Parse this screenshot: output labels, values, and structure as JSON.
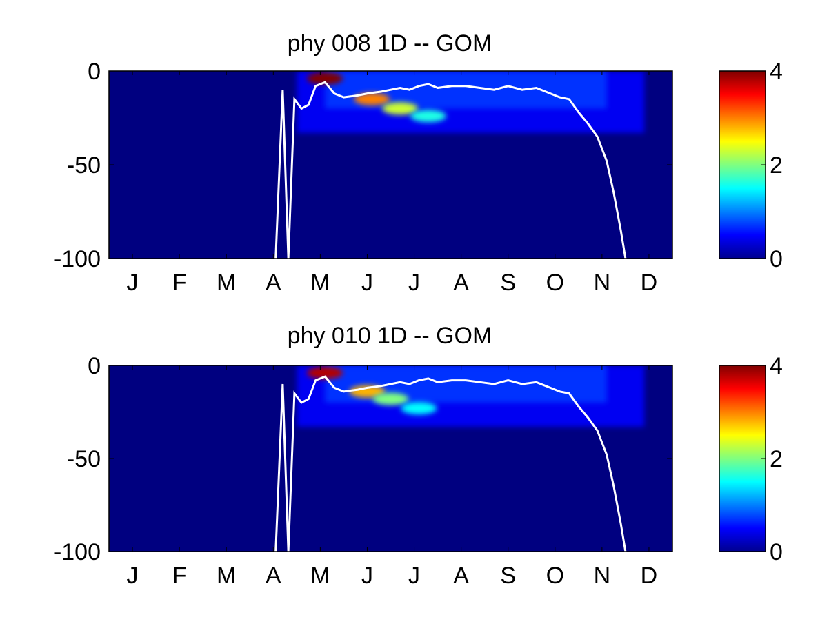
{
  "colormap": "jet",
  "colors": {
    "background": "#ffffff",
    "mld_line": "#ffffff",
    "axis": "#000000"
  },
  "chart_data": [
    {
      "type": "heatmap",
      "title": "phy  008 1D   -- GOM",
      "xlabel": "",
      "ylabel": "",
      "x_tick_labels": [
        "J",
        "F",
        "M",
        "A",
        "M",
        "J",
        "J",
        "A",
        "S",
        "O",
        "N",
        "D"
      ],
      "y_ticks": [
        0,
        -50,
        -100
      ],
      "y_tick_labels": [
        "0",
        "-50",
        "-100"
      ],
      "ylim": [
        -100,
        0
      ],
      "color_range": [
        0,
        4
      ],
      "colorbar_ticks": [
        0,
        2,
        4
      ],
      "colorbar_tick_labels": [
        "0",
        "2",
        "4"
      ],
      "bloom_features": [
        {
          "month": 4.6,
          "depth": -4,
          "value": 4.0
        },
        {
          "month": 5.6,
          "depth": -15,
          "value": 3.0
        },
        {
          "month": 6.2,
          "depth": -20,
          "value": 2.3
        },
        {
          "month": 6.8,
          "depth": -24,
          "value": 1.6
        }
      ],
      "mixed_layer_depth": {
        "month": [
          3.55,
          3.7,
          3.82,
          3.95,
          4.1,
          4.25,
          4.4,
          4.6,
          4.8,
          5.0,
          5.3,
          5.5,
          5.8,
          6.0,
          6.2,
          6.4,
          6.6,
          6.8,
          7.0,
          7.3,
          7.6,
          7.9,
          8.2,
          8.5,
          8.8,
          9.1,
          9.4,
          9.6,
          9.8,
          10.0,
          10.2,
          10.4,
          10.6,
          10.75,
          10.9,
          11.0
        ],
        "depth": [
          -100,
          -10,
          -100,
          -15,
          -20,
          -18,
          -8,
          -6,
          -12,
          -14,
          -13,
          -12,
          -11,
          -10,
          -9,
          -10,
          -8,
          -7,
          -9,
          -8,
          -8,
          -9,
          -10,
          -8,
          -10,
          -9,
          -12,
          -14,
          -15,
          -22,
          -28,
          -35,
          -48,
          -65,
          -85,
          -100
        ]
      }
    },
    {
      "type": "heatmap",
      "title": "phy  010 1D   -- GOM",
      "xlabel": "",
      "ylabel": "",
      "x_tick_labels": [
        "J",
        "F",
        "M",
        "A",
        "M",
        "J",
        "J",
        "A",
        "S",
        "O",
        "N",
        "D"
      ],
      "y_ticks": [
        0,
        -50,
        -100
      ],
      "y_tick_labels": [
        "0",
        "-50",
        "-100"
      ],
      "ylim": [
        -100,
        0
      ],
      "color_range": [
        0,
        4
      ],
      "colorbar_ticks": [
        0,
        2,
        4
      ],
      "colorbar_tick_labels": [
        "0",
        "2",
        "4"
      ],
      "bloom_features": [
        {
          "month": 4.6,
          "depth": -4,
          "value": 3.8
        },
        {
          "month": 5.5,
          "depth": -14,
          "value": 2.8
        },
        {
          "month": 6.0,
          "depth": -18,
          "value": 2.0
        },
        {
          "month": 6.6,
          "depth": -23,
          "value": 1.5
        }
      ],
      "mixed_layer_depth": {
        "month": [
          3.55,
          3.7,
          3.82,
          3.95,
          4.1,
          4.25,
          4.4,
          4.6,
          4.8,
          5.0,
          5.3,
          5.5,
          5.8,
          6.0,
          6.2,
          6.4,
          6.6,
          6.8,
          7.0,
          7.3,
          7.6,
          7.9,
          8.2,
          8.5,
          8.8,
          9.1,
          9.4,
          9.6,
          9.8,
          10.0,
          10.2,
          10.4,
          10.6,
          10.75,
          10.9,
          11.0
        ],
        "depth": [
          -100,
          -10,
          -100,
          -15,
          -20,
          -18,
          -8,
          -6,
          -12,
          -14,
          -13,
          -12,
          -11,
          -10,
          -9,
          -10,
          -8,
          -7,
          -9,
          -8,
          -8,
          -9,
          -10,
          -8,
          -10,
          -9,
          -12,
          -14,
          -15,
          -22,
          -28,
          -35,
          -48,
          -65,
          -85,
          -100
        ]
      }
    }
  ]
}
